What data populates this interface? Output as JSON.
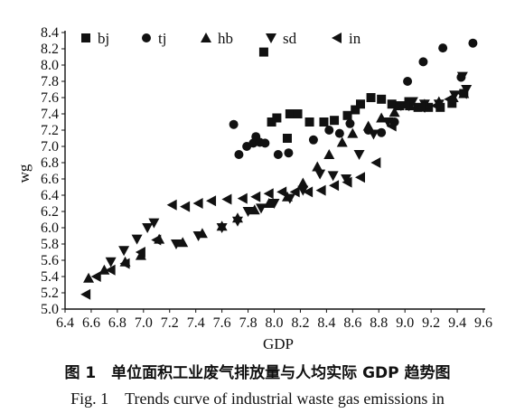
{
  "chart_data": {
    "type": "scatter",
    "xlabel": "GDP",
    "ylabel": "wg",
    "xlim": [
      6.4,
      9.6
    ],
    "ylim": [
      5.0,
      8.4
    ],
    "xticks": [
      "6.4",
      "6.6",
      "6.8",
      "7.0",
      "7.2",
      "7.4",
      "7.6",
      "7.8",
      "8.0",
      "8.2",
      "8.4",
      "8.6",
      "8.8",
      "9.0",
      "9.2",
      "9.4",
      "9.6"
    ],
    "yticks": [
      "5.0",
      "5.2",
      "5.4",
      "5.6",
      "5.8",
      "6.0",
      "6.2",
      "6.4",
      "6.6",
      "6.8",
      "7.0",
      "7.2",
      "7.4",
      "7.6",
      "7.8",
      "8.0",
      "8.2",
      "8.4"
    ],
    "legend_position": "top",
    "series": [
      {
        "name": "bj",
        "marker": "square",
        "color": "#111111",
        "points": [
          [
            7.92,
            8.16
          ],
          [
            7.98,
            7.3
          ],
          [
            8.02,
            7.35
          ],
          [
            8.1,
            7.1
          ],
          [
            8.12,
            7.4
          ],
          [
            8.18,
            7.4
          ],
          [
            8.27,
            7.3
          ],
          [
            8.38,
            7.3
          ],
          [
            8.46,
            7.32
          ],
          [
            8.56,
            7.38
          ],
          [
            8.62,
            7.45
          ],
          [
            8.66,
            7.52
          ],
          [
            8.74,
            7.6
          ],
          [
            8.82,
            7.58
          ],
          [
            8.9,
            7.52
          ],
          [
            8.96,
            7.5
          ],
          [
            9.03,
            7.55
          ],
          [
            9.1,
            7.48
          ],
          [
            9.18,
            7.48
          ],
          [
            9.27,
            7.48
          ],
          [
            9.36,
            7.53
          ],
          [
            9.45,
            7.65
          ]
        ]
      },
      {
        "name": "tj",
        "marker": "circle",
        "color": "#111111",
        "points": [
          [
            7.69,
            7.27
          ],
          [
            7.73,
            6.9
          ],
          [
            7.79,
            7.0
          ],
          [
            7.84,
            7.04
          ],
          [
            7.86,
            7.12
          ],
          [
            7.89,
            7.05
          ],
          [
            7.93,
            7.04
          ],
          [
            8.03,
            6.9
          ],
          [
            8.11,
            6.92
          ],
          [
            8.3,
            7.08
          ],
          [
            8.42,
            7.2
          ],
          [
            8.5,
            7.16
          ],
          [
            8.58,
            7.28
          ],
          [
            8.72,
            7.2
          ],
          [
            8.82,
            7.17
          ],
          [
            8.92,
            7.3
          ],
          [
            9.02,
            7.8
          ],
          [
            9.14,
            8.04
          ],
          [
            9.29,
            8.21
          ],
          [
            9.43,
            7.85
          ],
          [
            9.52,
            8.27
          ]
        ]
      },
      {
        "name": "hb",
        "marker": "triangle-up",
        "color": "#111111",
        "points": [
          [
            6.58,
            5.38
          ],
          [
            6.7,
            5.48
          ],
          [
            6.86,
            5.58
          ],
          [
            6.98,
            5.66
          ],
          [
            7.12,
            5.86
          ],
          [
            7.3,
            5.82
          ],
          [
            7.45,
            5.93
          ],
          [
            7.6,
            6.02
          ],
          [
            7.72,
            6.12
          ],
          [
            7.85,
            6.22
          ],
          [
            7.96,
            6.3
          ],
          [
            8.1,
            6.38
          ],
          [
            8.22,
            6.55
          ],
          [
            8.33,
            6.75
          ],
          [
            8.42,
            6.9
          ],
          [
            8.52,
            7.05
          ],
          [
            8.6,
            7.16
          ],
          [
            8.72,
            7.25
          ],
          [
            8.82,
            7.35
          ],
          [
            8.92,
            7.42
          ],
          [
            9.04,
            7.5
          ],
          [
            9.15,
            7.52
          ],
          [
            9.26,
            7.55
          ],
          [
            9.37,
            7.6
          ],
          [
            9.45,
            7.65
          ]
        ]
      },
      {
        "name": "sd",
        "marker": "triangle-down",
        "color": "#111111",
        "points": [
          [
            6.75,
            5.58
          ],
          [
            6.85,
            5.72
          ],
          [
            6.95,
            5.86
          ],
          [
            7.03,
            6.0
          ],
          [
            7.08,
            6.06
          ],
          [
            7.25,
            5.8
          ],
          [
            7.42,
            5.9
          ],
          [
            7.6,
            6.0
          ],
          [
            7.72,
            6.08
          ],
          [
            7.8,
            6.2
          ],
          [
            7.9,
            6.24
          ],
          [
            8.0,
            6.3
          ],
          [
            8.12,
            6.36
          ],
          [
            8.22,
            6.46
          ],
          [
            8.35,
            6.66
          ],
          [
            8.45,
            6.64
          ],
          [
            8.55,
            6.6
          ],
          [
            8.65,
            6.9
          ],
          [
            8.76,
            7.15
          ],
          [
            8.87,
            7.3
          ],
          [
            8.97,
            7.5
          ],
          [
            9.06,
            7.55
          ],
          [
            9.15,
            7.52
          ],
          [
            9.26,
            7.52
          ],
          [
            9.38,
            7.63
          ],
          [
            9.44,
            7.86
          ],
          [
            9.47,
            7.7
          ]
        ]
      },
      {
        "name": "in",
        "marker": "triangle-left",
        "color": "#111111",
        "points": [
          [
            6.56,
            5.18
          ],
          [
            6.64,
            5.4
          ],
          [
            6.75,
            5.48
          ],
          [
            6.86,
            5.56
          ],
          [
            6.98,
            5.7
          ],
          [
            7.1,
            5.85
          ],
          [
            7.22,
            6.28
          ],
          [
            7.32,
            6.26
          ],
          [
            7.42,
            6.3
          ],
          [
            7.52,
            6.33
          ],
          [
            7.64,
            6.35
          ],
          [
            7.76,
            6.36
          ],
          [
            7.86,
            6.38
          ],
          [
            7.96,
            6.42
          ],
          [
            8.06,
            6.44
          ],
          [
            8.16,
            6.44
          ],
          [
            8.26,
            6.44
          ],
          [
            8.36,
            6.46
          ],
          [
            8.46,
            6.52
          ],
          [
            8.56,
            6.56
          ],
          [
            8.66,
            6.62
          ],
          [
            8.78,
            6.8
          ],
          [
            8.9,
            7.25
          ],
          [
            9.0,
            7.5
          ],
          [
            9.12,
            7.48
          ],
          [
            9.24,
            7.5
          ],
          [
            9.34,
            7.58
          ],
          [
            9.44,
            7.65
          ]
        ]
      }
    ]
  },
  "caption": {
    "chinese": "图 1　单位面积工业废气排放量与人均实际 GDP 趋势图",
    "english": "Fig. 1　Trends curve of industrial waste gas emissions in"
  }
}
